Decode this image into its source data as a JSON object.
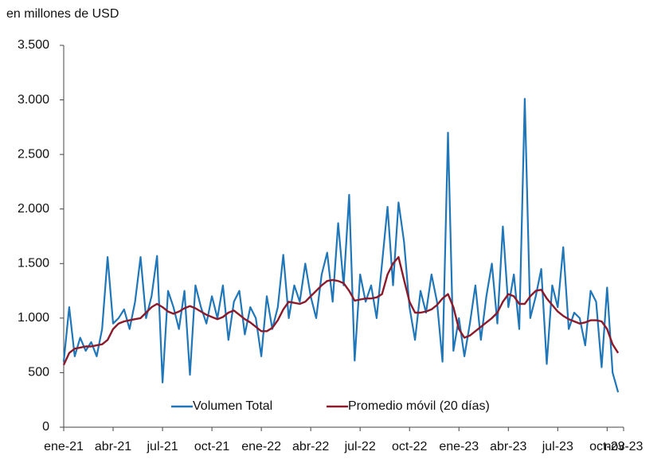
{
  "chart_data": {
    "type": "line",
    "y_axis_label": "en millones de USD",
    "ylim": [
      0,
      3500
    ],
    "yticks": [
      0,
      500,
      {
        "value": 1000,
        "label": "1.000"
      },
      {
        "value": 1500,
        "label": "1.500"
      },
      {
        "value": 2000,
        "label": "2.000"
      },
      {
        "value": 2500,
        "label": "2.500"
      },
      {
        "value": 3000,
        "label": "3.000"
      },
      {
        "value": 3500,
        "label": "3.500"
      }
    ],
    "xlim": [
      0,
      102
    ],
    "xticks": [
      {
        "value": 0,
        "label": "ene-21"
      },
      {
        "value": 9,
        "label": "abr-21"
      },
      {
        "value": 18,
        "label": "jul-21"
      },
      {
        "value": 27,
        "label": "oct-21"
      },
      {
        "value": 36,
        "label": "ene-22"
      },
      {
        "value": 45,
        "label": "abr-22"
      },
      {
        "value": 54,
        "label": "jul-22"
      },
      {
        "value": 63,
        "label": "oct-22"
      },
      {
        "value": 72,
        "label": "ene-23"
      },
      {
        "value": 81,
        "label": "abr-23"
      },
      {
        "value": 90,
        "label": "jul-23"
      },
      {
        "value": 99,
        "label": "oct-23"
      },
      {
        "value": 102,
        "label": "nov-23"
      }
    ],
    "legend": "bottom",
    "series": [
      {
        "name": "Volumen Total",
        "color": "#1f77b9",
        "values": [
          600,
          1100,
          650,
          820,
          700,
          780,
          650,
          900,
          1560,
          950,
          1000,
          1080,
          900,
          1150,
          1560,
          1000,
          1200,
          1570,
          410,
          1250,
          1100,
          900,
          1250,
          480,
          1300,
          1100,
          950,
          1200,
          1000,
          1300,
          800,
          1150,
          1250,
          850,
          1100,
          1000,
          650,
          1200,
          900,
          1100,
          1580,
          1000,
          1300,
          1150,
          1500,
          1200,
          1000,
          1400,
          1600,
          1150,
          1870,
          1300,
          2130,
          610,
          1400,
          1150,
          1300,
          1000,
          1500,
          2020,
          1300,
          2060,
          1700,
          1100,
          800,
          1250,
          1050,
          1400,
          1150,
          600,
          2700,
          700,
          1000,
          650,
          950,
          1300,
          800,
          1200,
          1500,
          950,
          1840,
          1100,
          1400,
          900,
          3010,
          1000,
          1200,
          1450,
          580,
          1300,
          1100,
          1650,
          900,
          1050,
          1000,
          750,
          1250,
          1150,
          550,
          1280,
          500,
          320
        ]
      },
      {
        "name": "Promedio móvil (20 días)",
        "color": "#8b1a2b",
        "values": [
          570,
          680,
          720,
          730,
          740,
          740,
          750,
          760,
          800,
          900,
          950,
          970,
          980,
          990,
          1000,
          1050,
          1100,
          1130,
          1100,
          1060,
          1040,
          1060,
          1090,
          1110,
          1090,
          1060,
          1030,
          1010,
          990,
          1010,
          1050,
          1070,
          1030,
          990,
          960,
          920,
          880,
          880,
          910,
          980,
          1080,
          1150,
          1140,
          1130,
          1150,
          1200,
          1250,
          1300,
          1340,
          1350,
          1340,
          1320,
          1250,
          1160,
          1170,
          1180,
          1180,
          1190,
          1220,
          1400,
          1500,
          1560,
          1350,
          1150,
          1050,
          1050,
          1060,
          1080,
          1120,
          1180,
          1220,
          1100,
          900,
          820,
          840,
          880,
          920,
          960,
          1000,
          1050,
          1150,
          1220,
          1200,
          1130,
          1130,
          1200,
          1250,
          1260,
          1180,
          1120,
          1060,
          1020,
          990,
          970,
          950,
          960,
          980,
          980,
          970,
          900,
          760,
          680
        ]
      }
    ]
  }
}
